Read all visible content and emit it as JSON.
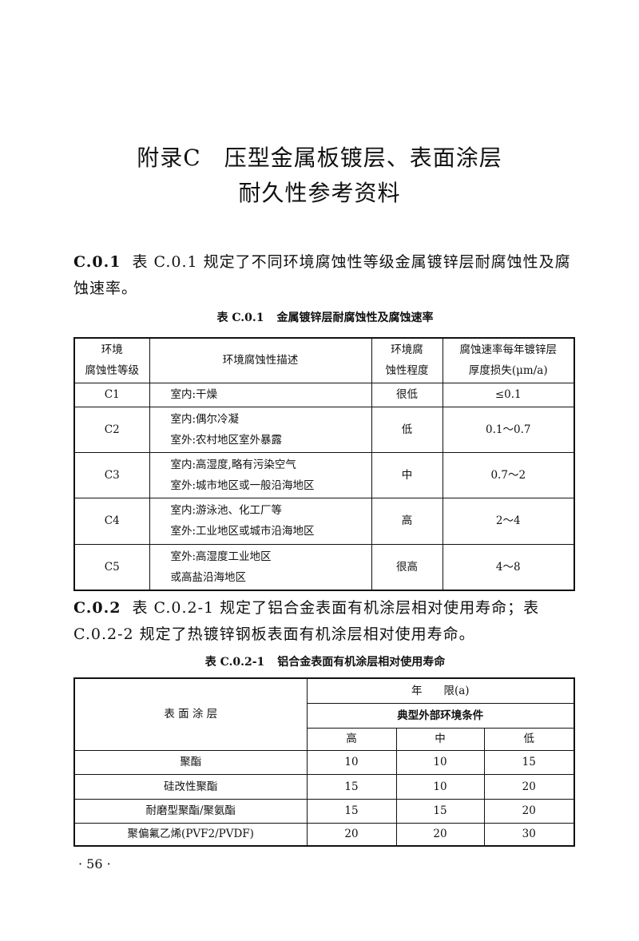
{
  "title": {
    "line1": "附录C　压型金属板镀层、表面涂层",
    "line2": "耐久性参考资料"
  },
  "section_c01": {
    "number": "C.0.1",
    "text": "表 C.0.1 规定了不同环境腐蚀性等级金属镀锌层耐腐蚀性及腐蚀速率。"
  },
  "table_c01": {
    "caption_number": "表 C.0.1",
    "caption_title": "金属镀锌层耐腐蚀性及腐蚀速率",
    "headers": [
      "环境\n腐蚀性等级",
      "环境腐蚀性描述",
      "环境腐\n蚀性程度",
      "腐蚀速率每年镀锌层\n厚度损失(μm/a)"
    ],
    "rows": [
      {
        "grade": "C1",
        "desc1": "室内:干燥",
        "desc2": "",
        "level": "很低",
        "rate": "≤0.1"
      },
      {
        "grade": "C2",
        "desc1": "室内:偶尔冷凝",
        "desc2": "室外:农村地区室外暴露",
        "level": "低",
        "rate": "0.1～0.7"
      },
      {
        "grade": "C3",
        "desc1": "室内:高湿度,略有污染空气",
        "desc2": "室外:城市地区或一般沿海地区",
        "level": "中",
        "rate": "0.7～2"
      },
      {
        "grade": "C4",
        "desc1": "室内:游泳池、化工厂等",
        "desc2": "室外:工业地区或城市沿海地区",
        "level": "高",
        "rate": "2～4"
      },
      {
        "grade": "C5",
        "desc1": "室外:高湿度工业地区",
        "desc2": "或高盐沿海地区",
        "level": "很高",
        "rate": "4～8"
      }
    ]
  },
  "section_c02": {
    "number": "C.0.2",
    "text": "表 C.0.2-1 规定了铝合金表面有机涂层相对使用寿命；表 C.0.2-2 规定了热镀锌钢板表面有机涂层相对使用寿命。"
  },
  "table_c021": {
    "caption_number": "表 C.0.2-1",
    "caption_title": "铝合金表面有机涂层相对使用寿命",
    "header_coating": "表 面 涂 层",
    "header_years": "年　　限(a)",
    "header_env": "典型外部环境条件",
    "env_levels": [
      "高",
      "中",
      "低"
    ],
    "rows": [
      {
        "coating": "聚酯",
        "values": [
          "10",
          "10",
          "15"
        ]
      },
      {
        "coating": "硅改性聚酯",
        "values": [
          "15",
          "10",
          "20"
        ]
      },
      {
        "coating": "耐磨型聚酯/聚氨酯",
        "values": [
          "15",
          "15",
          "20"
        ]
      },
      {
        "coating": "聚偏氟乙烯(PVF2/PVDF)",
        "values": [
          "20",
          "20",
          "30"
        ]
      }
    ]
  },
  "page_number": "· 56 ·"
}
